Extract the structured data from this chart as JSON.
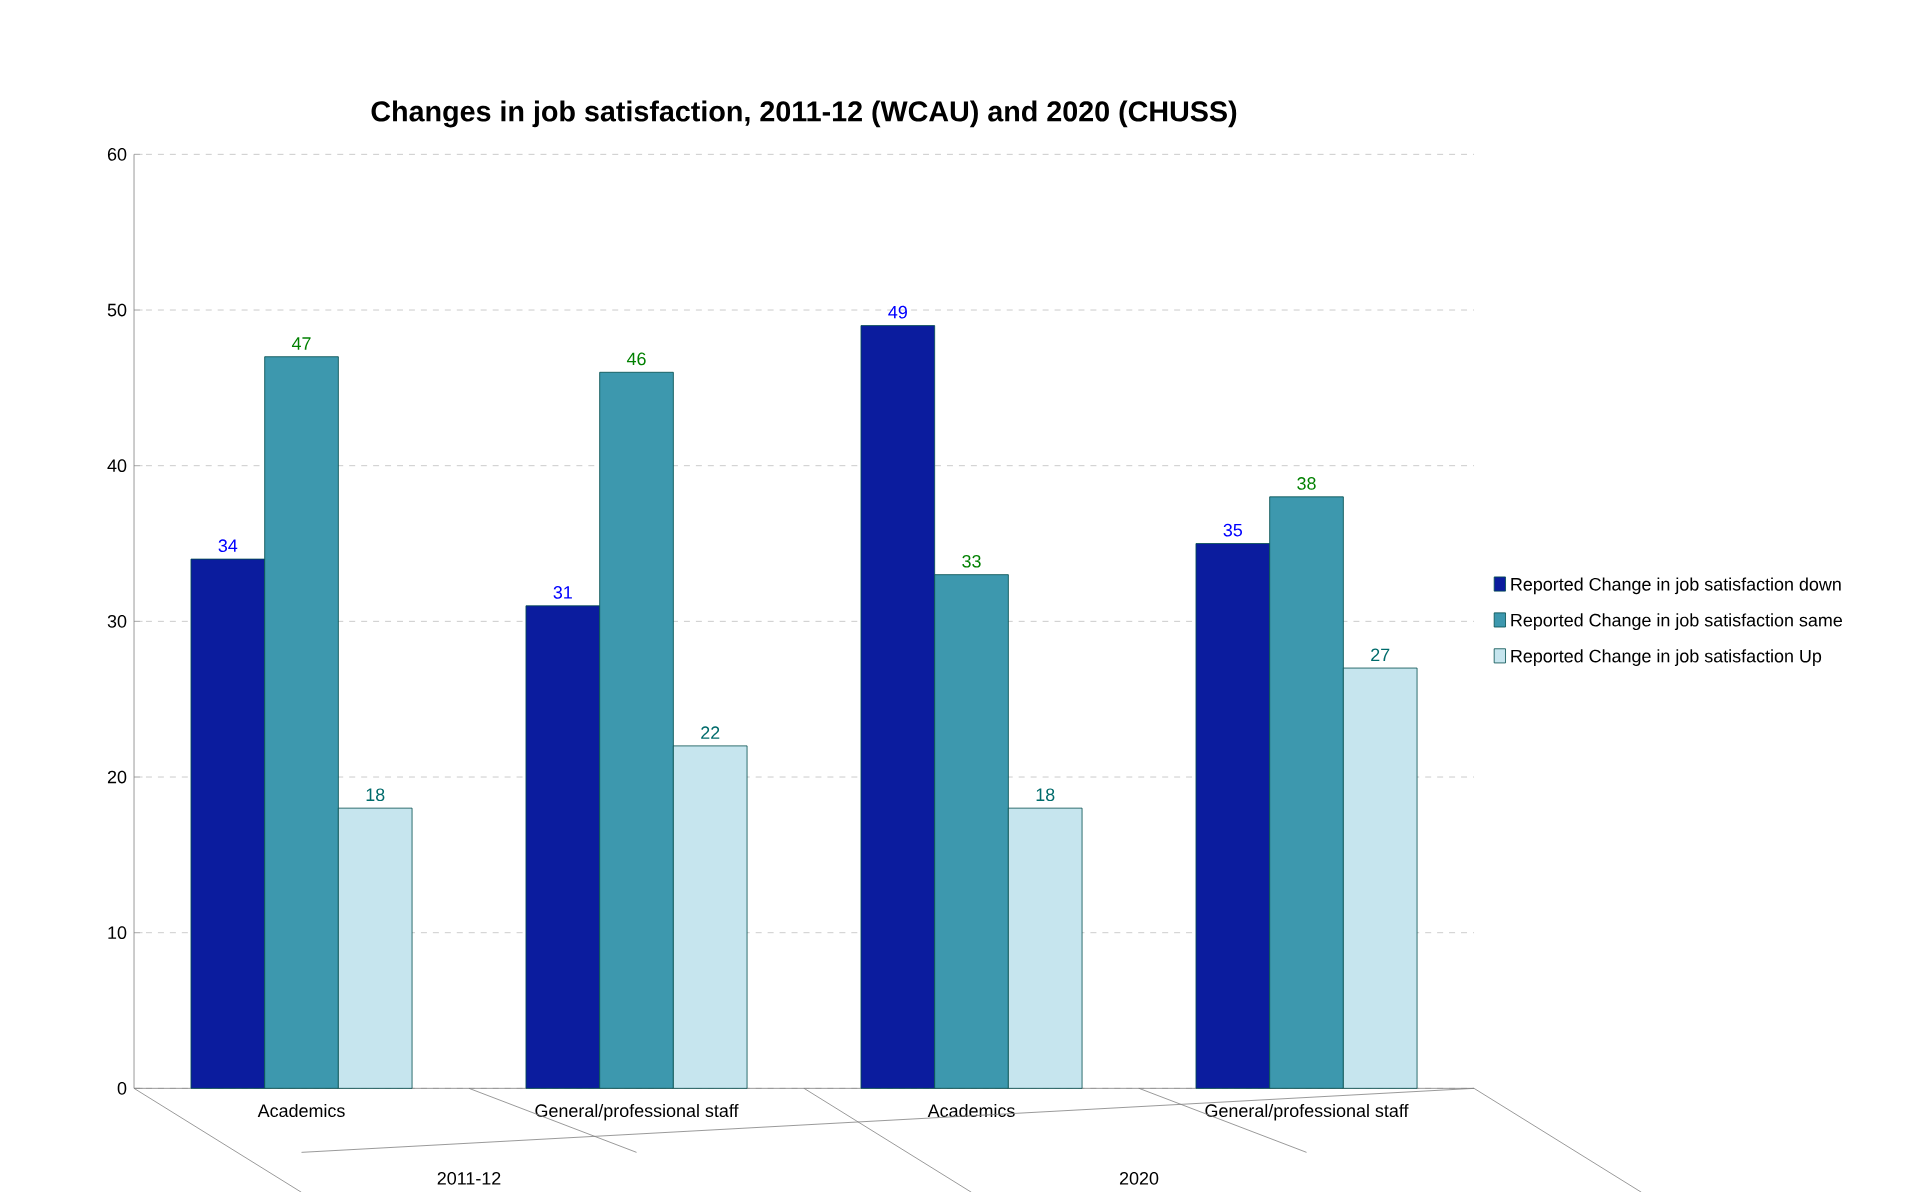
{
  "chart_data": {
    "type": "bar",
    "title": "Changes in job satisfaction, 2011-12 (WCAU) and 2020 (CHUSS)",
    "categories": [
      "Academics",
      "General/professional staff",
      "Academics",
      "General/professional staff"
    ],
    "series": [
      {
        "name": "Reported Change in job satisfaction down",
        "color": "#0b1c9e",
        "values": [
          34,
          31,
          49,
          35
        ]
      },
      {
        "name": "Reported Change in job satisfaction same",
        "color": "#3d98ae",
        "values": [
          47,
          46,
          33,
          38
        ]
      },
      {
        "name": "Reported Change in job satisfaction Up",
        "color": "#c6e5ee",
        "values": [
          18,
          22,
          18,
          27
        ]
      }
    ],
    "annotations": [
      "2011-12",
      "2020"
    ],
    "ylim": [
      0,
      60
    ],
    "yticks": [
      0,
      10,
      20,
      30,
      40,
      50,
      60
    ],
    "grid": "y",
    "legend": "right",
    "data_labels": true
  }
}
